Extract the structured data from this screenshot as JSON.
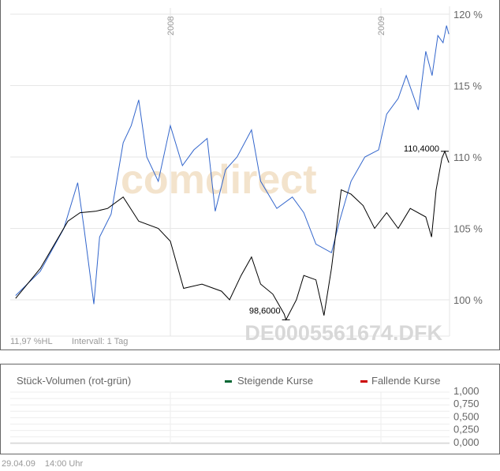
{
  "chart_data": {
    "type": "line",
    "x_ticks": [
      "2008",
      "2009"
    ],
    "x_tick_dates": [
      "2008-01-01",
      "2009-01-01"
    ],
    "y_ticks": [
      "100 %",
      "105 %",
      "110 %",
      "115 %",
      "120 %"
    ],
    "y_tick_values": [
      100,
      105,
      110,
      115,
      120
    ],
    "ylim": [
      97.5,
      120.2
    ],
    "xlim": [
      "2007-04-07",
      "2009-04-29"
    ],
    "grid": true,
    "series": [
      {
        "color": "#3366cc",
        "points": [
          [
            "2007-04-07",
            100.3
          ],
          [
            "2007-05-20",
            102
          ],
          [
            "2007-06-30",
            105
          ],
          [
            "2007-07-24",
            108.2
          ],
          [
            "2007-08-04",
            105
          ],
          [
            "2007-08-21",
            99.7
          ],
          [
            "2007-08-31",
            104.4
          ],
          [
            "2007-09-20",
            106
          ],
          [
            "2007-10-11",
            111
          ],
          [
            "2007-10-25",
            112.2
          ],
          [
            "2007-11-07",
            114
          ],
          [
            "2007-11-21",
            110
          ],
          [
            "2007-12-11",
            108.3
          ],
          [
            "2008-01-01",
            112.2
          ],
          [
            "2008-01-22",
            109.4
          ],
          [
            "2008-02-11",
            110.5
          ],
          [
            "2008-03-05",
            111.3
          ],
          [
            "2008-03-19",
            106.2
          ],
          [
            "2008-04-06",
            109.1
          ],
          [
            "2008-04-26",
            110
          ],
          [
            "2008-05-21",
            111.9
          ],
          [
            "2008-06-06",
            108.3
          ],
          [
            "2008-07-04",
            106.4
          ],
          [
            "2008-07-31",
            107.2
          ],
          [
            "2008-08-20",
            106.1
          ],
          [
            "2008-09-10",
            103.9
          ],
          [
            "2008-10-07",
            103.3
          ],
          [
            "2008-10-21",
            105.5
          ],
          [
            "2008-11-10",
            108.3
          ],
          [
            "2008-12-04",
            110
          ],
          [
            "2008-12-28",
            110.5
          ],
          [
            "2009-01-11",
            113
          ],
          [
            "2009-01-31",
            114.1
          ],
          [
            "2009-02-14",
            115.7
          ],
          [
            "2009-03-07",
            113.3
          ],
          [
            "2009-03-20",
            117.4
          ],
          [
            "2009-03-31",
            115.7
          ],
          [
            "2009-04-10",
            118.5
          ],
          [
            "2009-04-19",
            118
          ],
          [
            "2009-04-25",
            119.2
          ],
          [
            "2009-04-29",
            118.6
          ]
        ]
      },
      {
        "color": "#000000",
        "points": [
          [
            "2007-04-07",
            100.1
          ],
          [
            "2007-05-20",
            102.2
          ],
          [
            "2007-07-07",
            105.5
          ],
          [
            "2007-07-28",
            106.1
          ],
          [
            "2007-08-24",
            106.2
          ],
          [
            "2007-09-14",
            106.4
          ],
          [
            "2007-10-11",
            107.2
          ],
          [
            "2007-11-07",
            105.5
          ],
          [
            "2007-12-11",
            105
          ],
          [
            "2008-01-01",
            104.1
          ],
          [
            "2008-01-24",
            100.8
          ],
          [
            "2008-02-25",
            101.1
          ],
          [
            "2008-03-30",
            100.6
          ],
          [
            "2008-04-13",
            100
          ],
          [
            "2008-05-03",
            101.7
          ],
          [
            "2008-05-21",
            103
          ],
          [
            "2008-06-06",
            101.1
          ],
          [
            "2008-06-27",
            100.4
          ],
          [
            "2008-07-17",
            99
          ],
          [
            "2008-07-20",
            98.6
          ],
          [
            "2008-08-07",
            100
          ],
          [
            "2008-08-20",
            101.7
          ],
          [
            "2008-09-10",
            101.4
          ],
          [
            "2008-09-24",
            98.9
          ],
          [
            "2008-10-07",
            102.2
          ],
          [
            "2008-10-24",
            107.7
          ],
          [
            "2008-11-10",
            107.4
          ],
          [
            "2008-12-01",
            106.6
          ],
          [
            "2008-12-21",
            105
          ],
          [
            "2009-01-11",
            106.1
          ],
          [
            "2009-01-31",
            105
          ],
          [
            "2009-02-21",
            106.4
          ],
          [
            "2009-03-20",
            105.8
          ],
          [
            "2009-03-30",
            104.4
          ],
          [
            "2009-04-07",
            107.7
          ],
          [
            "2009-04-17",
            109.9
          ],
          [
            "2009-04-22",
            110.4
          ],
          [
            "2009-04-29",
            109.6
          ]
        ]
      }
    ],
    "annotations": [
      {
        "label": "110,4000",
        "date": "2009-04-22",
        "value": 110.4
      },
      {
        "label": "98,6000",
        "date": "2008-07-20",
        "value": 98.6
      }
    ],
    "watermark": "comdirect",
    "symbol": "DE0005561674.DFK",
    "stats": "11,97 %HL",
    "interval": "Intervall: 1 Tag"
  },
  "volume": {
    "title": "Stück-Volumen (rot-grün)",
    "legend": [
      {
        "label": "Steigende Kurse",
        "color": "#006633"
      },
      {
        "label": "Fallende Kurse",
        "color": "#cc0000"
      }
    ],
    "y_ticks": [
      "1,000",
      "0,750",
      "0,500",
      "0,250",
      "0,000"
    ]
  },
  "footer": {
    "date": "29.04.09",
    "time": "14:00 Uhr"
  }
}
